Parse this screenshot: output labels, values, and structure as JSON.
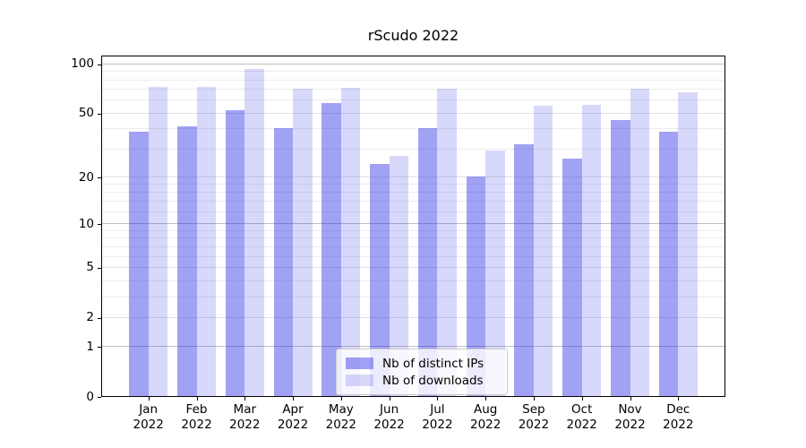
{
  "chart_data": {
    "type": "bar",
    "title": "rScudo 2022",
    "categories": [
      "Jan",
      "Feb",
      "Mar",
      "Apr",
      "May",
      "Jun",
      "Jul",
      "Aug",
      "Sep",
      "Oct",
      "Nov",
      "Dec"
    ],
    "year": "2022",
    "series": [
      {
        "name": "Nb of distinct IPs",
        "color": "rgba(40,40,230,0.43)",
        "values": [
          38,
          41,
          52,
          40,
          57,
          24,
          40,
          20,
          32,
          26,
          45,
          38
        ]
      },
      {
        "name": "Nb of downloads",
        "color": "rgba(40,40,230,0.18)",
        "values": [
          72,
          72,
          93,
          70,
          71,
          27,
          70,
          29,
          55,
          56,
          70,
          67
        ]
      }
    ],
    "yscale": "log1p",
    "ylim": [
      0,
      113
    ],
    "yticks": [
      0,
      1,
      2,
      5,
      10,
      20,
      50,
      100
    ],
    "minor_yticks": [
      3,
      4,
      6,
      7,
      8,
      9,
      12,
      14,
      16,
      18,
      30,
      40,
      60,
      70,
      80,
      90
    ],
    "grid": true,
    "legend_position": "lower center"
  }
}
